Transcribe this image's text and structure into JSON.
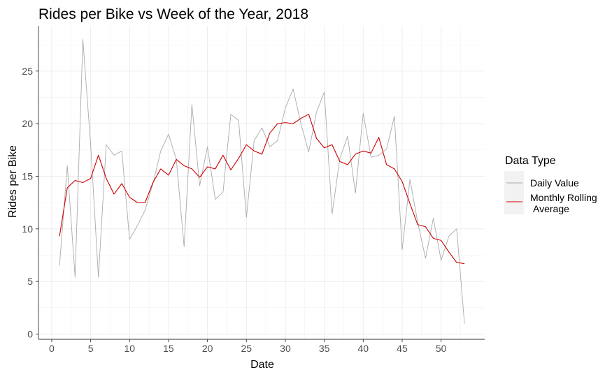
{
  "chart_data": {
    "type": "line",
    "title": "Rides per Bike vs Week of the Year, 2018",
    "xlabel": "Date",
    "ylabel": "Rides per Bike",
    "xlim": [
      -1.7,
      55.6
    ],
    "ylim": [
      -0.5,
      29.3
    ],
    "xticks": [
      0,
      5,
      10,
      15,
      20,
      25,
      30,
      35,
      40,
      45,
      50
    ],
    "yticks": [
      0,
      5,
      10,
      15,
      20,
      25
    ],
    "grid": true,
    "legend": {
      "title": "Data Type",
      "placement": "right",
      "entries": [
        "Daily Value",
        "Monthly Rolling\nAverage"
      ]
    },
    "series": [
      {
        "name": "Daily Value",
        "color": "#aaaaaa",
        "x": [
          1,
          2,
          3,
          4,
          5,
          6,
          7,
          8,
          9,
          10,
          11,
          12,
          13,
          14,
          15,
          16,
          17,
          18,
          19,
          20,
          21,
          22,
          23,
          24,
          25,
          26,
          27,
          28,
          29,
          30,
          31,
          32,
          33,
          34,
          35,
          36,
          37,
          38,
          39,
          40,
          41,
          42,
          43,
          44,
          45,
          46,
          47,
          48,
          49,
          50,
          51,
          52,
          53
        ],
        "y": [
          6.5,
          16.0,
          5.4,
          28.0,
          18.0,
          5.4,
          18.0,
          17.0,
          17.4,
          9.0,
          10.3,
          11.8,
          14.3,
          17.4,
          19.0,
          16.6,
          8.3,
          21.8,
          14.1,
          17.8,
          12.8,
          13.5,
          20.9,
          20.3,
          11.1,
          18.4,
          19.6,
          17.8,
          18.4,
          21.5,
          23.3,
          20.0,
          17.3,
          21.1,
          23.0,
          11.4,
          16.7,
          18.8,
          13.4,
          21.0,
          16.8,
          17.0,
          17.6,
          20.7,
          8.0,
          14.7,
          10.6,
          7.2,
          11.0,
          7.0,
          9.3,
          10.0,
          1.0
        ]
      },
      {
        "name": "Monthly Rolling\nAverage",
        "color": "#cc0000",
        "x": [
          1,
          2,
          3,
          4,
          5,
          6,
          7,
          8,
          9,
          10,
          11,
          12,
          13,
          14,
          15,
          16,
          17,
          18,
          19,
          20,
          21,
          22,
          23,
          24,
          25,
          26,
          27,
          28,
          29,
          30,
          31,
          32,
          33,
          34,
          35,
          36,
          37,
          38,
          39,
          40,
          41,
          42,
          43,
          44,
          45,
          46,
          47,
          48,
          49,
          50,
          51,
          52,
          53
        ],
        "y": [
          9.3,
          13.9,
          14.6,
          14.4,
          14.8,
          17.0,
          14.8,
          13.3,
          14.3,
          13.0,
          12.5,
          12.5,
          14.4,
          15.7,
          15.1,
          16.6,
          16.0,
          15.7,
          14.9,
          15.9,
          15.7,
          17.0,
          15.6,
          16.7,
          18.0,
          17.4,
          17.1,
          19.1,
          20.0,
          20.1,
          20.0,
          20.5,
          20.9,
          18.6,
          17.7,
          18.0,
          16.4,
          16.1,
          17.1,
          17.4,
          17.2,
          18.7,
          16.1,
          15.7,
          14.5,
          12.4,
          10.4,
          10.2,
          9.1,
          8.9,
          7.8,
          6.8,
          6.7
        ]
      }
    ]
  }
}
